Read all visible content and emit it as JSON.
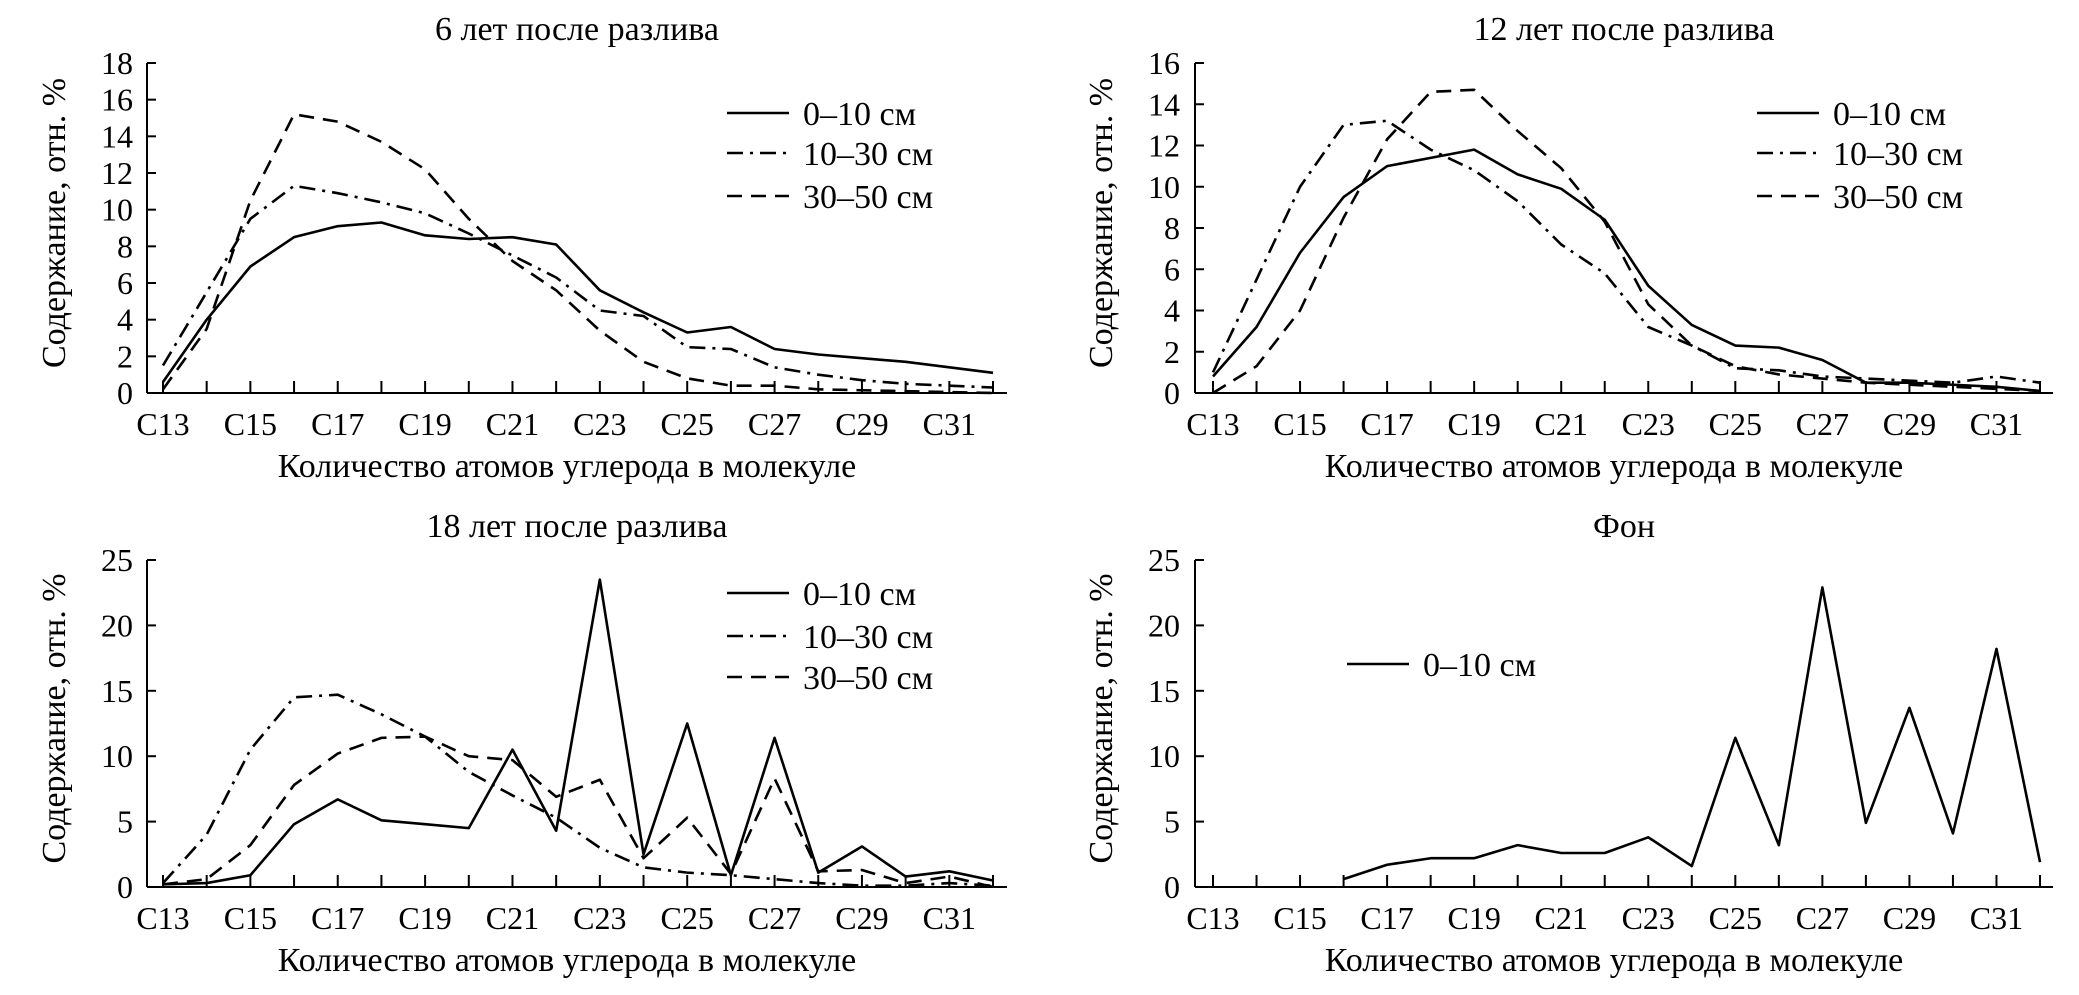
{
  "chart_data": [
    {
      "type": "line",
      "title": "6 лет после разлива",
      "xlabel": "Количество атомов углерода в молекуле",
      "ylabel": "Содержание, отн. %",
      "x": [
        13,
        14,
        15,
        16,
        17,
        18,
        19,
        20,
        21,
        22,
        23,
        24,
        25,
        26,
        27,
        28,
        29,
        30,
        31,
        32
      ],
      "x_tick_labels": [
        "C13",
        "C15",
        "C17",
        "C19",
        "C21",
        "C23",
        "C25",
        "C27",
        "C29",
        "C31"
      ],
      "x_tick_values": [
        13,
        15,
        17,
        19,
        21,
        23,
        25,
        27,
        29,
        31
      ],
      "ylim": [
        0,
        18
      ],
      "y_ticks": [
        0,
        2,
        4,
        6,
        8,
        10,
        12,
        14,
        16,
        18
      ],
      "legend": "top-right",
      "series": [
        {
          "name": "0–10 см",
          "style": "solid",
          "values": [
            0.6,
            4.0,
            6.9,
            8.5,
            9.1,
            9.3,
            8.6,
            8.4,
            8.5,
            8.1,
            5.6,
            4.4,
            3.3,
            3.6,
            2.4,
            2.1,
            1.9,
            1.7,
            1.4,
            1.1
          ]
        },
        {
          "name": "10–30 см",
          "style": "dash-dot",
          "values": [
            1.5,
            5.5,
            9.5,
            11.3,
            10.9,
            10.4,
            9.8,
            8.7,
            7.5,
            6.3,
            4.5,
            4.2,
            2.5,
            2.4,
            1.4,
            1.0,
            0.7,
            0.5,
            0.4,
            0.3
          ]
        },
        {
          "name": "30–50 см",
          "style": "dashed",
          "values": [
            0.2,
            3.5,
            10.5,
            15.2,
            14.8,
            13.7,
            12.2,
            9.5,
            7.2,
            5.6,
            3.4,
            1.7,
            0.8,
            0.4,
            0.4,
            0.2,
            0.15,
            0.1,
            0.05,
            0.0
          ]
        }
      ]
    },
    {
      "type": "line",
      "title": "12 лет после разлива",
      "xlabel": "Количество атомов углерода в молекуле",
      "ylabel": "Содержание, отн. %",
      "x": [
        13,
        14,
        15,
        16,
        17,
        18,
        19,
        20,
        21,
        22,
        23,
        24,
        25,
        26,
        27,
        28,
        29,
        30,
        31,
        32
      ],
      "x_tick_labels": [
        "C13",
        "C15",
        "C17",
        "C19",
        "C21",
        "C23",
        "C25",
        "C27",
        "C29",
        "C31"
      ],
      "x_tick_values": [
        13,
        15,
        17,
        19,
        21,
        23,
        25,
        27,
        29,
        31
      ],
      "ylim": [
        0,
        16
      ],
      "y_ticks": [
        0,
        2,
        4,
        6,
        8,
        10,
        12,
        14,
        16
      ],
      "legend": "top-right",
      "series": [
        {
          "name": "0–10 см",
          "style": "solid",
          "values": [
            0.8,
            3.2,
            6.8,
            9.5,
            11.0,
            11.4,
            11.8,
            10.6,
            9.9,
            8.4,
            5.2,
            3.3,
            2.3,
            2.2,
            1.6,
            0.5,
            0.5,
            0.4,
            0.3,
            0.1
          ]
        },
        {
          "name": "10–30 см",
          "style": "dash-dot",
          "values": [
            1.0,
            5.5,
            10.0,
            13.0,
            13.2,
            11.8,
            10.8,
            9.3,
            7.2,
            5.8,
            3.2,
            2.3,
            1.2,
            1.1,
            0.8,
            0.7,
            0.6,
            0.5,
            0.8,
            0.5
          ]
        },
        {
          "name": "30–50 см",
          "style": "dashed",
          "values": [
            0.0,
            1.3,
            4.0,
            8.5,
            12.3,
            14.6,
            14.7,
            12.7,
            10.9,
            8.3,
            4.3,
            2.3,
            1.3,
            0.9,
            0.7,
            0.5,
            0.4,
            0.3,
            0.2,
            0.1
          ]
        }
      ]
    },
    {
      "type": "line",
      "title": "18 лет после разлива",
      "xlabel": "Количество атомов углерода в молекуле",
      "ylabel": "Содержание, отн. %",
      "x": [
        13,
        14,
        15,
        16,
        17,
        18,
        19,
        20,
        21,
        22,
        23,
        24,
        25,
        26,
        27,
        28,
        29,
        30,
        31,
        32
      ],
      "x_tick_labels": [
        "C13",
        "C15",
        "C17",
        "C19",
        "C21",
        "C23",
        "C25",
        "C27",
        "C29",
        "C31"
      ],
      "x_tick_values": [
        13,
        15,
        17,
        19,
        21,
        23,
        25,
        27,
        29,
        31
      ],
      "ylim": [
        0,
        25
      ],
      "y_ticks": [
        0,
        5,
        10,
        15,
        20,
        25
      ],
      "legend": "top-right",
      "series": [
        {
          "name": "0–10 см",
          "style": "solid",
          "values": [
            0.2,
            0.3,
            0.9,
            4.8,
            6.7,
            5.1,
            4.8,
            4.5,
            10.5,
            4.3,
            23.5,
            2.5,
            12.5,
            0.9,
            11.4,
            1.1,
            3.1,
            0.8,
            1.2,
            0.5
          ]
        },
        {
          "name": "10–30 см",
          "style": "dash-dot",
          "values": [
            0.3,
            4.0,
            10.5,
            14.5,
            14.7,
            13.2,
            11.5,
            8.8,
            7.0,
            5.3,
            3.0,
            1.5,
            1.1,
            0.9,
            0.6,
            0.3,
            0.1,
            0.1,
            0.3,
            0.1
          ]
        },
        {
          "name": "30–50 см",
          "style": "dashed",
          "values": [
            0.2,
            0.6,
            3.2,
            7.8,
            10.2,
            11.4,
            11.5,
            10.0,
            9.7,
            6.9,
            8.2,
            2.2,
            5.3,
            1.0,
            8.3,
            1.2,
            1.3,
            0.3,
            0.8,
            0.0
          ]
        }
      ]
    },
    {
      "type": "line",
      "title": "Фон",
      "xlabel": "Количество атомов углерода в молекуле",
      "ylabel": "Содержание, отн. %",
      "x": [
        16,
        17,
        18,
        19,
        20,
        21,
        22,
        23,
        24,
        25,
        26,
        27,
        28,
        29,
        30,
        31,
        32
      ],
      "x_tick_labels": [
        "C13",
        "C15",
        "C17",
        "C19",
        "C21",
        "C23",
        "C25",
        "C27",
        "C29",
        "C31"
      ],
      "x_tick_values": [
        13,
        15,
        17,
        19,
        21,
        23,
        25,
        27,
        29,
        31
      ],
      "ylim": [
        0,
        25
      ],
      "y_ticks": [
        0,
        5,
        10,
        15,
        20,
        25
      ],
      "legend": "center-left",
      "series": [
        {
          "name": "0–10 см",
          "style": "solid",
          "values": [
            0.6,
            1.7,
            2.2,
            2.2,
            3.2,
            2.6,
            2.6,
            3.8,
            1.6,
            11.4,
            3.2,
            22.9,
            4.9,
            13.7,
            4.1,
            18.2,
            1.9
          ]
        }
      ]
    }
  ]
}
